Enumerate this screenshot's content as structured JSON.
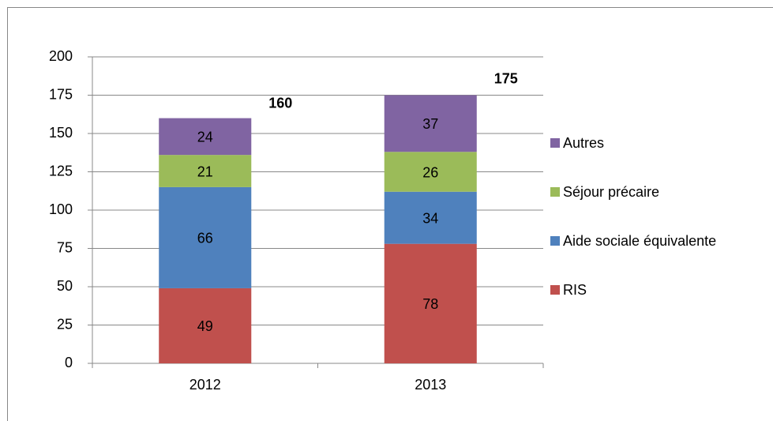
{
  "chart_data": {
    "type": "stacked_bar",
    "categories": [
      "2012",
      "2013"
    ],
    "series": [
      {
        "name": "RIS",
        "color": "#c0504d",
        "values": [
          49,
          78
        ]
      },
      {
        "name": "Aide sociale équivalente",
        "color": "#4f81bd",
        "values": [
          66,
          34
        ]
      },
      {
        "name": "Séjour précaire",
        "color": "#9bbb59",
        "values": [
          21,
          26
        ]
      },
      {
        "name": "Autres",
        "color": "#8064a2",
        "values": [
          24,
          37
        ]
      }
    ],
    "totals": [
      160,
      175
    ],
    "ylim": [
      0,
      200
    ],
    "yticks": [
      0,
      25,
      50,
      75,
      100,
      125,
      150,
      175,
      200
    ],
    "grid": true,
    "legend": "right"
  }
}
